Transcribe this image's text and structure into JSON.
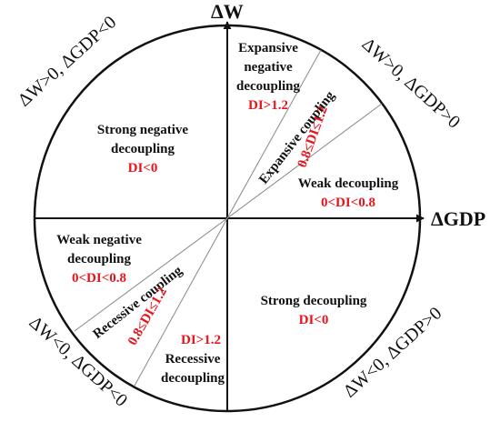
{
  "colors": {
    "label": "#111111",
    "index": "#e8141b",
    "line": "#111111",
    "divider": "#888888"
  },
  "axes": {
    "x_label": "ΔGDP",
    "y_label": "ΔW"
  },
  "quadrants": {
    "q1": "ΔW>0, ΔGDP>0",
    "q2": "ΔW>0, ΔGDP<0",
    "q3": "ΔW<0, ΔGDP<0",
    "q4": "ΔW<0, ΔGDP>0"
  },
  "states": {
    "expansive_negative": {
      "line1": "Expansive",
      "line2": "negative",
      "line3": "decoupling",
      "index": "DI>1.2"
    },
    "expansive_coupling": {
      "label": "Expansive coupling",
      "index": "0.8≤DI≤1.2"
    },
    "weak_decoupling": {
      "label": "Weak decoupling",
      "index": "0<DI<0.8"
    },
    "strong_negative": {
      "line1": "Strong negative",
      "line2": "decoupling",
      "index": "DI<0"
    },
    "weak_negative": {
      "line1": "Weak negative",
      "line2": "decoupling",
      "index": "0<DI<0.8"
    },
    "recessive_coupling": {
      "label": "Recessive coupling",
      "index": "0.8≤DI≤1.2"
    },
    "recessive_decoupling": {
      "line1": "Recessive",
      "line2": "decoupling",
      "index": "DI>1.2"
    },
    "strong_decoupling": {
      "label": "Strong decoupling",
      "index": "DI<0"
    }
  }
}
